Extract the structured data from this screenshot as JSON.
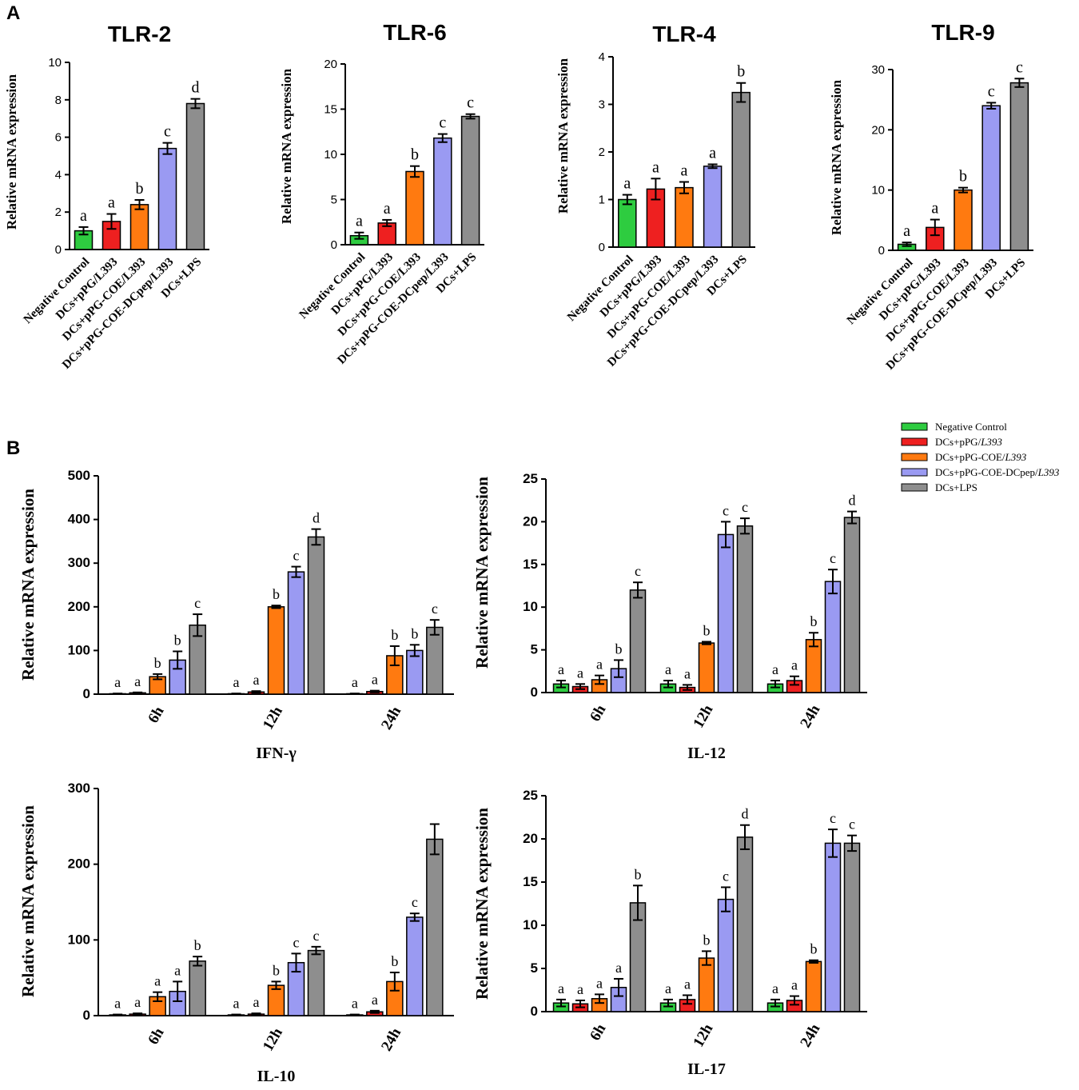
{
  "panel_labels": {
    "a": "A",
    "b": "B"
  },
  "colors": {
    "negative_control": "#2ecc40",
    "pPG": "#ee2020",
    "pPG_COE": "#ff7a10",
    "pPG_COE_DCpep": "#9a9af2",
    "LPS": "#8e8e8e"
  },
  "legend": {
    "items": [
      {
        "prefix": "Negative Control",
        "italic": "",
        "color_key": "negative_control"
      },
      {
        "prefix": "DCs+pPG/",
        "italic": "L393",
        "color_key": "pPG"
      },
      {
        "prefix": "DCs+pPG-COE/",
        "italic": "L393",
        "color_key": "pPG_COE"
      },
      {
        "prefix": "DCs+pPG-COE-DCpep/",
        "italic": "L393",
        "color_key": "pPG_COE_DCpep"
      },
      {
        "prefix": "DCs+LPS",
        "italic": "",
        "color_key": "LPS"
      }
    ]
  },
  "chart_data": [
    {
      "type": "bar",
      "title": "TLR-2",
      "ylabel": "Relative mRNA expression",
      "ylim": [
        0,
        10
      ],
      "yticks": [
        0,
        2,
        4,
        6,
        8,
        10
      ],
      "categories": [
        "Negative Control",
        "DCs+pPG/L393",
        "DCs+pPG-COE/L393",
        "DCs+pPG-COE-DCpep/L393",
        "DCs+LPS"
      ],
      "values": [
        1.0,
        1.5,
        2.4,
        5.4,
        7.8
      ],
      "errors": [
        0.2,
        0.4,
        0.25,
        0.3,
        0.25
      ],
      "letters": [
        "a",
        "a",
        "b",
        "c",
        "d"
      ]
    },
    {
      "type": "bar",
      "title": "TLR-6",
      "ylabel": "Relative mRNA expression",
      "ylim": [
        0,
        20
      ],
      "yticks": [
        0,
        5,
        10,
        15,
        20
      ],
      "categories": [
        "Negative Control",
        "DCs+pPG/L393",
        "DCs+pPG-COE/L393",
        "DCs+pPG-COE-DCpep/L393",
        "DCs+LPS"
      ],
      "values": [
        1.0,
        2.4,
        8.1,
        11.8,
        14.2
      ],
      "errors": [
        0.35,
        0.35,
        0.6,
        0.45,
        0.25
      ],
      "letters": [
        "a",
        "a",
        "b",
        "c",
        "c"
      ]
    },
    {
      "type": "bar",
      "title": "TLR-4",
      "ylabel": "Relative mRNA expression",
      "ylim": [
        0,
        4
      ],
      "yticks": [
        0,
        1,
        2,
        3,
        4
      ],
      "categories": [
        "Negative Control",
        "DCs+pPG/L393",
        "DCs+pPG-COE/L393",
        "DCs+pPG-COE-DCpep/L393",
        "DCs+LPS"
      ],
      "values": [
        1.0,
        1.22,
        1.25,
        1.7,
        3.25
      ],
      "errors": [
        0.1,
        0.22,
        0.12,
        0.04,
        0.2
      ],
      "letters": [
        "a",
        "a",
        "a",
        "a",
        "b"
      ]
    },
    {
      "type": "bar",
      "title": "TLR-9",
      "ylabel": "Relative mRNA expression",
      "ylim": [
        0,
        30
      ],
      "yticks": [
        0,
        10,
        20,
        30
      ],
      "categories": [
        "Negative Control",
        "DCs+pPG/L393",
        "DCs+pPG-COE/L393",
        "DCs+pPG-COE-DCpep/L393",
        "DCs+LPS"
      ],
      "values": [
        1.0,
        3.8,
        10.0,
        24.0,
        27.8
      ],
      "errors": [
        0.3,
        1.3,
        0.4,
        0.5,
        0.7
      ],
      "letters": [
        "a",
        "a",
        "b",
        "c",
        "c"
      ]
    },
    {
      "type": "bar",
      "title": "IFN-γ",
      "ylabel": "Relative mRNA expression",
      "ylim": [
        0,
        500
      ],
      "yticks": [
        0,
        100,
        200,
        300,
        400,
        500
      ],
      "categories": [
        "6h",
        "12h",
        "24h"
      ],
      "series": [
        {
          "name": "Negative Control",
          "values": [
            1,
            1,
            1
          ],
          "errors": [
            0.5,
            0.5,
            0.5
          ],
          "letters": [
            "a",
            "a",
            "a"
          ]
        },
        {
          "name": "DCs+pPG/L393",
          "values": [
            3,
            5,
            6
          ],
          "errors": [
            1,
            2,
            2
          ],
          "letters": [
            "a",
            "a",
            "a"
          ]
        },
        {
          "name": "DCs+pPG-COE/L393",
          "values": [
            40,
            200,
            88
          ],
          "errors": [
            6,
            3,
            22
          ],
          "letters": [
            "b",
            "b",
            "b"
          ]
        },
        {
          "name": "DCs+pPG-COE-DCpep/L393",
          "values": [
            78,
            280,
            100
          ],
          "errors": [
            20,
            12,
            13
          ],
          "letters": [
            "b",
            "c",
            "b"
          ]
        },
        {
          "name": "DCs+LPS",
          "values": [
            158,
            360,
            153
          ],
          "errors": [
            25,
            18,
            17
          ],
          "letters": [
            "c",
            "d",
            "c"
          ]
        }
      ]
    },
    {
      "type": "bar",
      "title": "IL-12",
      "ylabel": "Relative mRNA expression",
      "ylim": [
        0,
        25
      ],
      "yticks": [
        0,
        5,
        10,
        15,
        20,
        25
      ],
      "categories": [
        "6h",
        "12h",
        "24h"
      ],
      "series": [
        {
          "name": "Negative Control",
          "values": [
            1.0,
            1.0,
            1.0
          ],
          "errors": [
            0.4,
            0.4,
            0.4
          ],
          "letters": [
            "a",
            "a",
            "a"
          ]
        },
        {
          "name": "DCs+pPG/L393",
          "values": [
            0.7,
            0.6,
            1.4
          ],
          "errors": [
            0.3,
            0.3,
            0.5
          ],
          "letters": [
            "a",
            "a",
            "a"
          ]
        },
        {
          "name": "DCs+pPG-COE/L393",
          "values": [
            1.5,
            5.8,
            6.2
          ],
          "errors": [
            0.5,
            0.15,
            0.8
          ],
          "letters": [
            "a",
            "b",
            "b"
          ]
        },
        {
          "name": "DCs+pPG-COE-DCpep/L393",
          "values": [
            2.8,
            18.5,
            13.0
          ],
          "errors": [
            1.0,
            1.5,
            1.4
          ],
          "letters": [
            "b",
            "c",
            "c"
          ]
        },
        {
          "name": "DCs+LPS",
          "values": [
            12.0,
            19.5,
            20.5
          ],
          "errors": [
            0.9,
            0.9,
            0.7
          ],
          "letters": [
            "c",
            "c",
            "d"
          ]
        }
      ]
    },
    {
      "type": "bar",
      "title": "IL-10",
      "ylabel": "Relative mRNA expression",
      "ylim": [
        0,
        300
      ],
      "yticks": [
        0,
        100,
        200,
        300
      ],
      "categories": [
        "6h",
        "12h",
        "24h"
      ],
      "series": [
        {
          "name": "Negative Control",
          "values": [
            1,
            1,
            1
          ],
          "errors": [
            0.5,
            0.5,
            0.5
          ],
          "letters": [
            "a",
            "a",
            "a"
          ]
        },
        {
          "name": "DCs+pPG/L393",
          "values": [
            2,
            2,
            5
          ],
          "errors": [
            1,
            1,
            1.5
          ],
          "letters": [
            "a",
            "a",
            "a"
          ]
        },
        {
          "name": "DCs+pPG-COE/L393",
          "values": [
            25,
            40,
            45
          ],
          "errors": [
            6,
            5,
            12
          ],
          "letters": [
            "a",
            "b",
            "b"
          ]
        },
        {
          "name": "DCs+pPG-COE-DCpep/L393",
          "values": [
            32,
            70,
            130
          ],
          "errors": [
            13,
            12,
            5
          ],
          "letters": [
            "a",
            "c",
            "c"
          ]
        },
        {
          "name": "DCs+LPS",
          "values": [
            72,
            86,
            233
          ],
          "errors": [
            6,
            5,
            20
          ],
          "letters": [
            "b",
            "c",
            ""
          ]
        }
      ]
    },
    {
      "type": "bar",
      "title": "IL-17",
      "ylabel": "Relative mRNA expression",
      "ylim": [
        0,
        25
      ],
      "yticks": [
        0,
        5,
        10,
        15,
        20,
        25
      ],
      "categories": [
        "6h",
        "12h",
        "24h"
      ],
      "series": [
        {
          "name": "Negative Control",
          "values": [
            1.0,
            1.0,
            1.0
          ],
          "errors": [
            0.4,
            0.4,
            0.4
          ],
          "letters": [
            "a",
            "a",
            "a"
          ]
        },
        {
          "name": "DCs+pPG/L393",
          "values": [
            0.9,
            1.4,
            1.3
          ],
          "errors": [
            0.4,
            0.5,
            0.5
          ],
          "letters": [
            "a",
            "a",
            "a"
          ]
        },
        {
          "name": "DCs+pPG-COE/L393",
          "values": [
            1.5,
            6.2,
            5.8
          ],
          "errors": [
            0.5,
            0.8,
            0.15
          ],
          "letters": [
            "a",
            "b",
            "b"
          ]
        },
        {
          "name": "DCs+pPG-COE-DCpep/L393",
          "values": [
            2.8,
            13.0,
            19.5
          ],
          "errors": [
            1.0,
            1.4,
            1.6
          ],
          "letters": [
            "a",
            "c",
            "c"
          ]
        },
        {
          "name": "DCs+LPS",
          "values": [
            12.6,
            20.2,
            19.5
          ],
          "errors": [
            2.0,
            1.4,
            0.9
          ],
          "letters": [
            "b",
            "d",
            "c"
          ]
        }
      ]
    }
  ]
}
